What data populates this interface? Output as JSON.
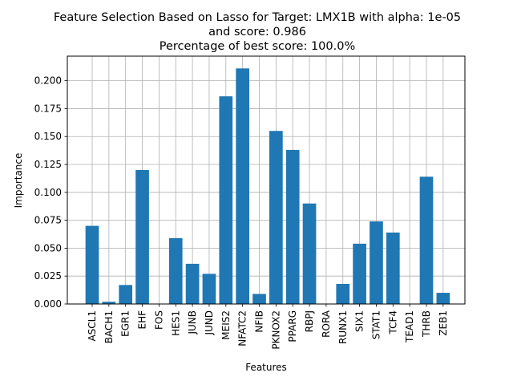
{
  "chart_data": {
    "type": "bar",
    "title_lines": [
      "Feature Selection Based on Lasso for Target: LMX1B with alpha: 1e-05",
      "and score: 0.986",
      "Percentage of best score: 100.0%"
    ],
    "xlabel": "Features",
    "ylabel": "Importance",
    "categories": [
      "ASCL1",
      "BACH1",
      "EGR1",
      "EHF",
      "FOS",
      "HES1",
      "JUNB",
      "JUND",
      "MEIS2",
      "NFATC2",
      "NFIB",
      "PKNOX2",
      "PPARG",
      "RBPJ",
      "RORA",
      "RUNX1",
      "SIX1",
      "STAT1",
      "TCF4",
      "TEAD1",
      "THRB",
      "ZEB1"
    ],
    "values": [
      0.07,
      0.002,
      0.017,
      0.12,
      0.0,
      0.059,
      0.036,
      0.027,
      0.186,
      0.211,
      0.009,
      0.155,
      0.138,
      0.09,
      0.0,
      0.018,
      0.054,
      0.074,
      0.064,
      0.0,
      0.114,
      0.01
    ],
    "yticks": [
      "0.000",
      "0.025",
      "0.050",
      "0.075",
      "0.100",
      "0.125",
      "0.150",
      "0.175",
      "0.200"
    ],
    "ylim": [
      0,
      0.222
    ],
    "grid": true,
    "bar_color": "#1f77b4"
  }
}
